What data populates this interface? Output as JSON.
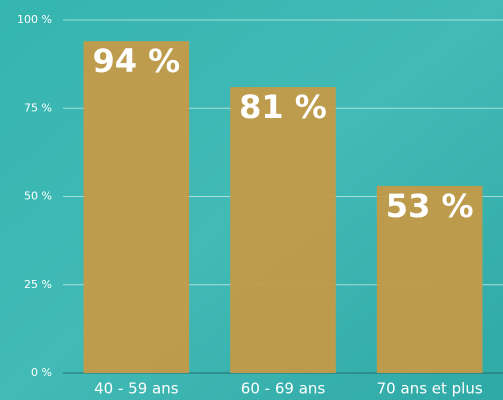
{
  "chart_data": {
    "type": "bar",
    "categories": [
      "40 - 59 ans",
      "60 - 69 ans",
      "70 ans et plus"
    ],
    "values": [
      94,
      81,
      53
    ],
    "value_labels": [
      "94 %",
      "81 %",
      "53 %"
    ],
    "color": "#c49a48",
    "ylim": [
      0,
      100
    ],
    "yticks": [
      {
        "value": 0,
        "label": "0 %"
      },
      {
        "value": 25,
        "label": "25 %"
      },
      {
        "value": 50,
        "label": "50 %"
      },
      {
        "value": 75,
        "label": "75 %"
      },
      {
        "value": 100,
        "label": "100 %"
      }
    ],
    "grid": true
  }
}
